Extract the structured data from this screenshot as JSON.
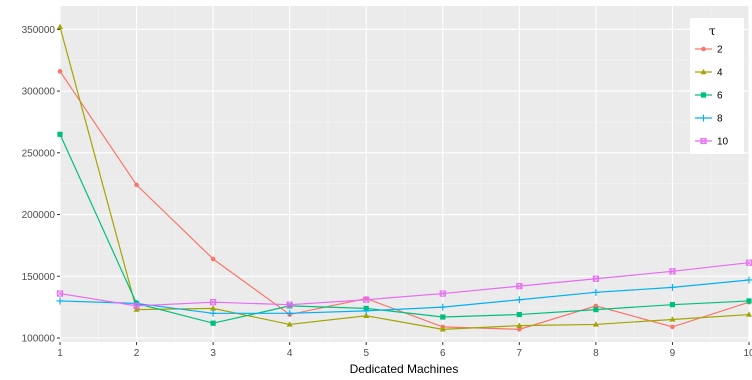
{
  "chart_data": {
    "type": "line",
    "title": "",
    "xlabel": "Dedicated Machines",
    "ylabel": "",
    "x": [
      1,
      2,
      3,
      4,
      5,
      6,
      7,
      8,
      9,
      10
    ],
    "xlim": [
      1,
      10
    ],
    "ylim": [
      100000,
      360000
    ],
    "x_ticks": [
      "1",
      "2",
      "3",
      "4",
      "5",
      "6",
      "7",
      "8",
      "9",
      "10"
    ],
    "y_ticks": [
      100000,
      150000,
      200000,
      250000,
      300000,
      350000
    ],
    "y_tick_labels": [
      "100000",
      "150000",
      "200000",
      "250000",
      "300000",
      "350000"
    ],
    "grid": true,
    "legend": {
      "title": "τ",
      "position": "top-right"
    },
    "series": [
      {
        "name": "2",
        "color": "#F8766D",
        "marker": "circle",
        "values": [
          316000,
          224000,
          164000,
          119000,
          132000,
          109000,
          107000,
          126000,
          109000,
          129000
        ]
      },
      {
        "name": "4",
        "color": "#A3A500",
        "marker": "triangle",
        "values": [
          352000,
          123000,
          124000,
          111000,
          118000,
          107000,
          110000,
          111000,
          115000,
          119000
        ]
      },
      {
        "name": "6",
        "color": "#00BF7D",
        "marker": "square",
        "values": [
          265000,
          128000,
          112000,
          126000,
          124000,
          117000,
          119000,
          123000,
          127000,
          130000
        ]
      },
      {
        "name": "8",
        "color": "#00B0F6",
        "marker": "cross",
        "values": [
          130000,
          128000,
          120000,
          120000,
          122000,
          125000,
          131000,
          137000,
          141000,
          147000
        ]
      },
      {
        "name": "10",
        "color": "#E76BF3",
        "marker": "boxcross",
        "values": [
          136000,
          126000,
          129000,
          127000,
          131000,
          136000,
          142000,
          148000,
          154000,
          161000
        ]
      }
    ]
  }
}
